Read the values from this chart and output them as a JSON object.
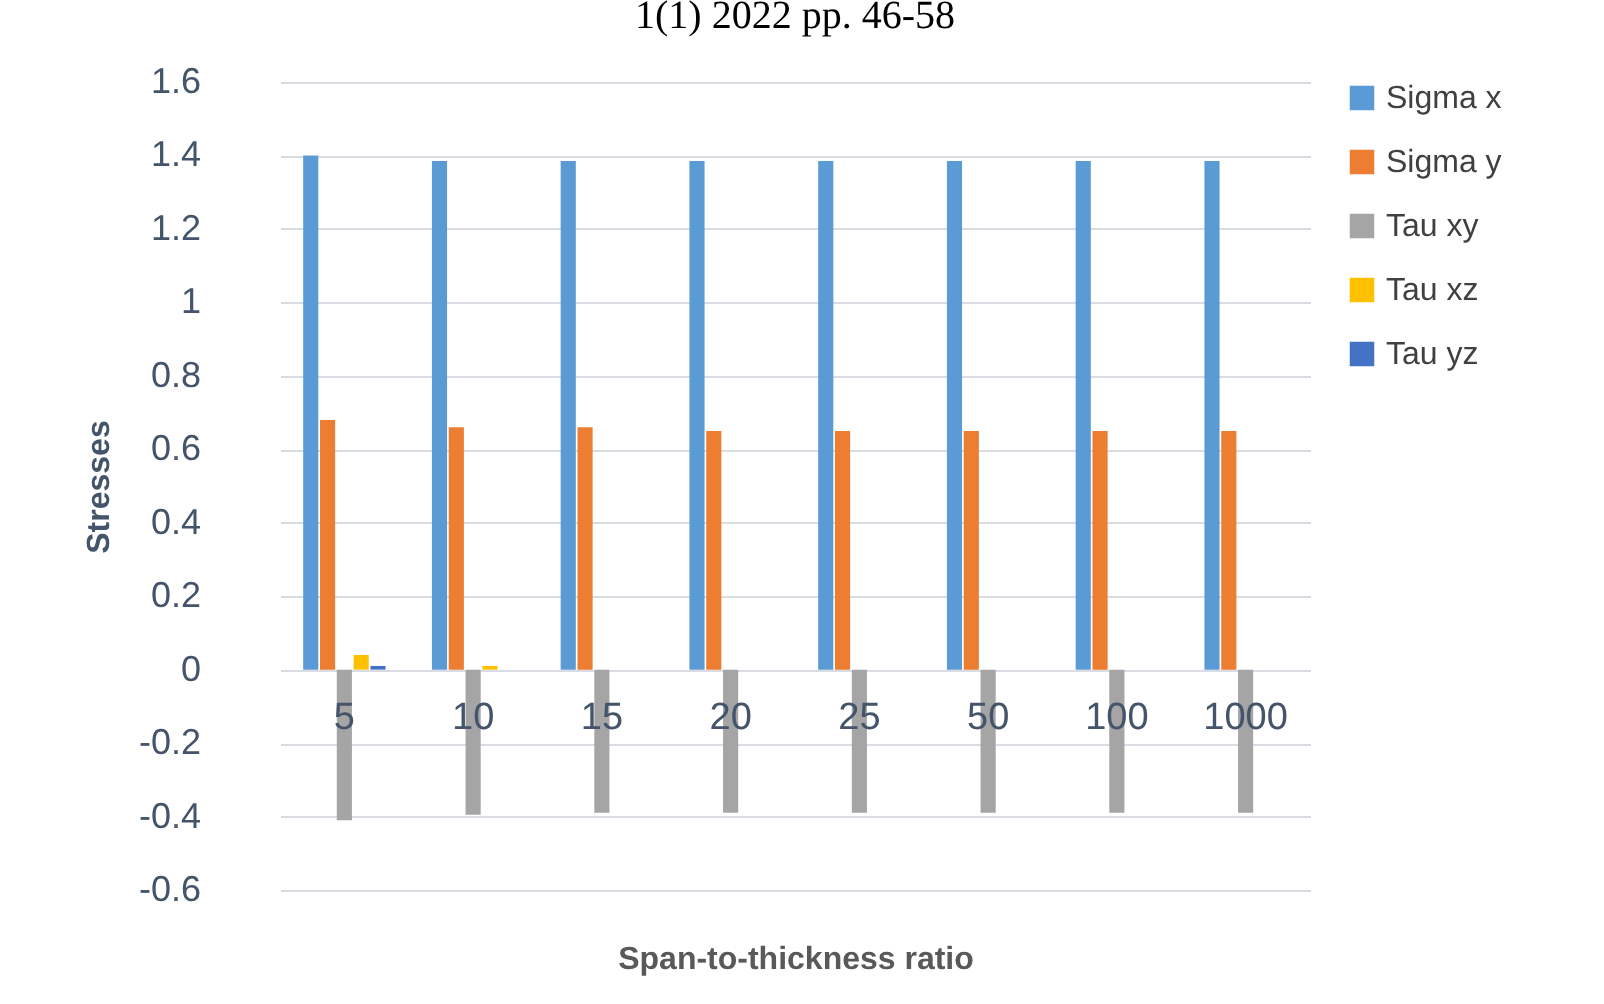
{
  "chart_data": {
    "type": "bar",
    "annotations": [
      "1(1) 2022 pp. 46-58"
    ],
    "xlabel": "Span-to-thickness ratio",
    "ylabel": "Stresses",
    "categories": [
      "5",
      "10",
      "15",
      "20",
      "25",
      "50",
      "100",
      "1000"
    ],
    "series": [
      {
        "name": "Sigma x",
        "color": "#5b9bd5",
        "values": [
          1.4,
          1.385,
          1.385,
          1.385,
          1.385,
          1.385,
          1.385,
          1.385
        ]
      },
      {
        "name": "Sigma y",
        "color": "#ed7d31",
        "values": [
          0.68,
          0.66,
          0.66,
          0.65,
          0.65,
          0.65,
          0.65,
          0.65
        ]
      },
      {
        "name": "Tau xy",
        "color": "#a5a5a5",
        "values": [
          -0.41,
          -0.395,
          -0.39,
          -0.39,
          -0.39,
          -0.39,
          -0.39,
          -0.39
        ]
      },
      {
        "name": "Tau xz",
        "color": "#ffc000",
        "values": [
          0.04,
          0.01,
          0,
          0,
          0,
          0,
          0,
          0
        ]
      },
      {
        "name": "Tau yz",
        "color": "#4472c4",
        "values": [
          0.01,
          0,
          0,
          0,
          0,
          0,
          0,
          0
        ]
      }
    ],
    "ylim": [
      -0.6,
      1.6
    ],
    "yticks": [
      -0.6,
      -0.4,
      -0.2,
      0,
      0.2,
      0.4,
      0.6,
      0.8,
      1,
      1.2,
      1.4,
      1.6
    ],
    "grid": "y",
    "legend": "right"
  }
}
